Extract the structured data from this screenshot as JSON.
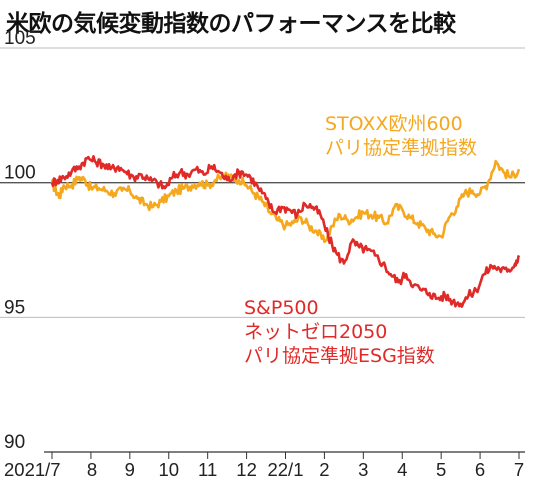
{
  "title": "米欧の気候変動指数のパフォーマンスを比較",
  "chart_data": {
    "type": "line",
    "title": "米欧の気候変動指数のパフォーマンスを比較",
    "xlabel": "",
    "ylabel": "",
    "ylim": [
      90,
      105
    ],
    "yticks": [
      "105",
      "100",
      "95",
      "90"
    ],
    "ytick_values": [
      105,
      100,
      95,
      90
    ],
    "baseline": 100,
    "xticks": [
      "2021/7",
      "8",
      "9",
      "10",
      "11",
      "12",
      "22/1",
      "2",
      "3",
      "4",
      "5",
      "6",
      "7"
    ],
    "x_range": [
      0,
      12
    ],
    "grid": "horizontal",
    "series": [
      {
        "name": "STOXX欧州600 パリ協定準拠指数",
        "label_lines": [
          "STOXX欧州600",
          "パリ協定準拠指数"
        ],
        "color": "#f5a81d",
        "x": [
          0,
          0.1,
          0.2,
          0.3,
          0.5,
          0.7,
          0.85,
          1,
          1.2,
          1.4,
          1.6,
          1.8,
          2,
          2.2,
          2.4,
          2.6,
          2.8,
          3,
          3.2,
          3.4,
          3.6,
          3.8,
          4,
          4.2,
          4.4,
          4.6,
          4.8,
          5,
          5.2,
          5.4,
          5.6,
          5.8,
          6,
          6.2,
          6.4,
          6.6,
          6.8,
          7,
          7.2,
          7.4,
          7.6,
          7.8,
          8,
          8.2,
          8.4,
          8.6,
          8.8,
          9,
          9.2,
          9.4,
          9.6,
          9.8,
          10,
          10.2,
          10.4,
          10.6,
          10.8,
          11,
          11.2,
          11.4,
          11.6,
          11.8,
          12
        ],
        "values": [
          100.0,
          99.7,
          99.5,
          99.9,
          99.9,
          100.2,
          100.1,
          99.8,
          99.8,
          99.7,
          99.6,
          99.7,
          99.7,
          99.4,
          99.2,
          99.1,
          99.3,
          99.5,
          99.7,
          99.8,
          99.9,
          100.0,
          99.9,
          100.1,
          100.2,
          100.3,
          100.1,
          99.9,
          99.6,
          99.3,
          98.9,
          98.6,
          98.4,
          98.5,
          98.7,
          98.4,
          98.2,
          97.8,
          98.4,
          98.8,
          98.6,
          98.7,
          98.9,
          98.8,
          98.7,
          98.5,
          99.1,
          99.0,
          98.7,
          98.5,
          98.3,
          98.1,
          98.0,
          98.7,
          99.1,
          99.6,
          99.7,
          99.6,
          100.0,
          100.8,
          100.4,
          100.2,
          100.5
        ]
      },
      {
        "name": "S&P500 ネットゼロ2050 パリ協定準拠ESG指数",
        "label_lines": [
          "S&P500",
          "ネットゼロ2050",
          "パリ協定準拠ESG指数"
        ],
        "color": "#e02a28",
        "x": [
          0,
          0.15,
          0.3,
          0.5,
          0.7,
          0.9,
          1.1,
          1.3,
          1.5,
          1.7,
          1.9,
          2.1,
          2.3,
          2.5,
          2.7,
          2.9,
          3.1,
          3.3,
          3.5,
          3.7,
          3.9,
          4.1,
          4.3,
          4.5,
          4.7,
          4.9,
          5.1,
          5.3,
          5.5,
          5.7,
          5.9,
          6.1,
          6.3,
          6.5,
          6.7,
          6.9,
          7.1,
          7.3,
          7.5,
          7.7,
          7.9,
          8.1,
          8.3,
          8.5,
          8.7,
          8.9,
          9.1,
          9.3,
          9.5,
          9.7,
          9.9,
          10.1,
          10.3,
          10.5,
          10.7,
          10.9,
          11.1,
          11.3,
          11.5,
          11.7,
          11.9,
          12
        ],
        "values": [
          100.0,
          100.1,
          100.2,
          100.4,
          100.6,
          100.9,
          100.8,
          100.7,
          100.5,
          100.6,
          100.4,
          100.2,
          100.3,
          100.1,
          100.0,
          99.8,
          100.2,
          100.4,
          100.3,
          100.5,
          100.3,
          100.6,
          100.4,
          100.1,
          100.3,
          100.4,
          100.2,
          99.8,
          99.4,
          98.9,
          99.1,
          99.0,
          98.8,
          99.2,
          99.1,
          98.8,
          98.0,
          97.4,
          97.0,
          97.8,
          97.6,
          97.5,
          97.3,
          97.0,
          96.6,
          96.3,
          96.6,
          96.2,
          96.0,
          95.9,
          95.7,
          95.8,
          95.6,
          95.5,
          95.8,
          96.0,
          96.6,
          96.9,
          96.8,
          96.7,
          97.0,
          97.3
        ]
      }
    ]
  }
}
